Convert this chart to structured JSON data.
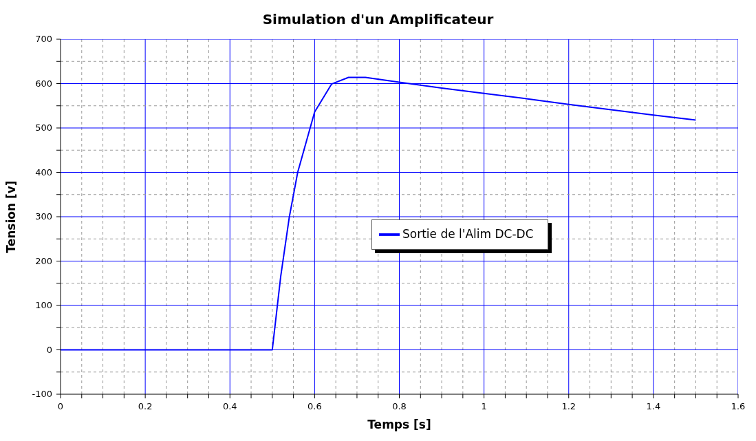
{
  "chart_data": {
    "type": "line",
    "title": "Simulation d'un Amplificateur",
    "xlabel": "Temps [s]",
    "ylabel": "Tension [v]",
    "x": [
      0,
      0.5,
      0.52,
      0.54,
      0.56,
      0.6,
      0.64,
      0.68,
      0.72,
      0.8,
      0.9,
      1.0,
      1.1,
      1.2,
      1.3,
      1.4,
      1.5
    ],
    "series": [
      {
        "name": "Sortie de l'Alim DC-DC",
        "color": "#0000ff",
        "values": [
          0,
          0,
          166,
          298,
          400,
          536,
          599,
          614,
          614,
          603,
          590,
          578,
          566,
          553,
          541,
          529,
          518
        ]
      }
    ],
    "xlim": [
      0,
      1.6
    ],
    "xticks": [
      0,
      {
        "value": 0.05,
        "label": null
      },
      {
        "value": 0.1,
        "label": null
      },
      {
        "value": 0.15,
        "label": null
      },
      0.2,
      {
        "value": 0.25,
        "label": null
      },
      {
        "value": 0.3,
        "label": null
      },
      {
        "value": 0.35,
        "label": null
      },
      0.4,
      {
        "value": 0.45,
        "label": null
      },
      {
        "value": 0.5,
        "label": null
      },
      {
        "value": 0.55,
        "label": null
      },
      0.6,
      {
        "value": 0.65,
        "label": null
      },
      {
        "value": 0.7,
        "label": null
      },
      {
        "value": 0.75,
        "label": null
      },
      0.8,
      {
        "value": 0.85,
        "label": null
      },
      {
        "value": 0.9,
        "label": null
      },
      {
        "value": 0.95,
        "label": null
      },
      1,
      {
        "value": 1.05,
        "label": null
      },
      {
        "value": 1.1,
        "label": null
      },
      {
        "value": 1.15,
        "label": null
      },
      1.2,
      {
        "value": 1.25,
        "label": null
      },
      {
        "value": 1.3,
        "label": null
      },
      {
        "value": 1.35,
        "label": null
      },
      1.4,
      {
        "value": 1.45,
        "label": null
      },
      {
        "value": 1.5,
        "label": null
      },
      {
        "value": 1.55,
        "label": null
      },
      1.6
    ],
    "ylim": [
      -100,
      700
    ],
    "yticks": [
      -100,
      {
        "value": -50,
        "label": null
      },
      0,
      {
        "value": 50,
        "label": null
      },
      100,
      {
        "value": 150,
        "label": null
      },
      200,
      {
        "value": 250,
        "label": null
      },
      300,
      {
        "value": 350,
        "label": null
      },
      400,
      {
        "value": 450,
        "label": null
      },
      500,
      {
        "value": 550,
        "label": null
      },
      600,
      {
        "value": 650,
        "label": null
      },
      700
    ],
    "grid": true,
    "legend": "center",
    "marker": "none",
    "line_style": "solid"
  }
}
